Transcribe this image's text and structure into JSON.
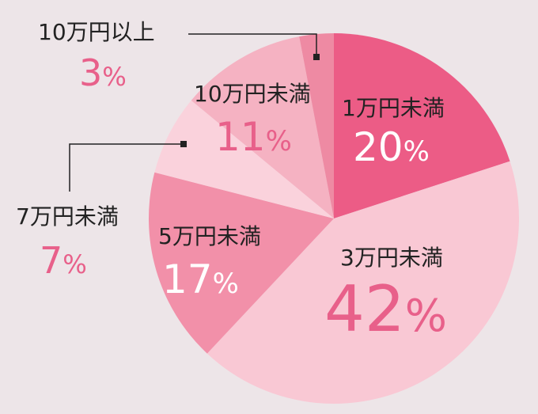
{
  "chart_data": {
    "type": "pie",
    "start": "top",
    "direction": "clockwise",
    "unit": "%",
    "slices": [
      {
        "label": "1万円未満",
        "value": 20,
        "value_label": "20%",
        "color": "#ec5c86",
        "text_color": "#ffffff"
      },
      {
        "label": "3万円未満",
        "value": 42,
        "value_label": "42%",
        "color": "#f9c8d4",
        "text_color": "#e8608a"
      },
      {
        "label": "5万円未満",
        "value": 17,
        "value_label": "17%",
        "color": "#f290a9",
        "text_color": "#ffffff"
      },
      {
        "label": "7万円未満",
        "value": 7,
        "value_label": "7%",
        "color": "#fad2dc",
        "text_color": "#e8608a"
      },
      {
        "label": "10万円未満",
        "value": 11,
        "value_label": "11%",
        "color": "#f5b2c2",
        "text_color": "#e8608a"
      },
      {
        "label": "10万円以上",
        "value": 3,
        "value_label": "3%",
        "color": "#ee8aa3",
        "text_color": "#e8608a"
      }
    ],
    "label_color": "#222222",
    "background": "#ede5e8"
  }
}
